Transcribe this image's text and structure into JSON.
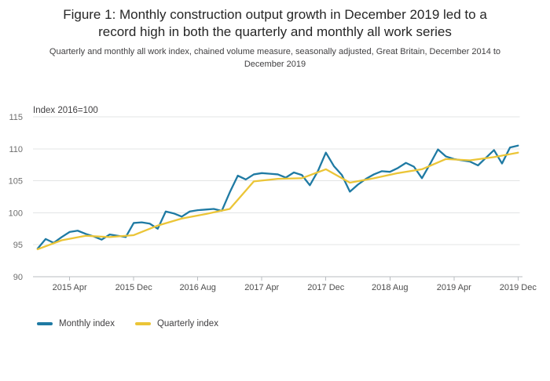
{
  "chart_data": {
    "type": "line",
    "title": "Figure 1: Monthly construction output growth in December 2019 led to a record high in both the quarterly and monthly all work series",
    "subtitle": "Quarterly and monthly all work index, chained volume measure, seasonally adjusted, Great Britain, December 2014 to December 2019",
    "unit_label": "Index 2016=100",
    "grid": "horizontal",
    "legend_position": "bottom-left",
    "colors": {
      "monthly_line": "#1f7aa3",
      "quarterly_line": "#ebc537",
      "gridline": "#e3e4e5",
      "axis": "#b9bdc1",
      "text": "#414042"
    },
    "y_axis": {
      "ticks": [
        90,
        95,
        100,
        105,
        110,
        115
      ],
      "range": [
        90,
        115
      ]
    },
    "x_axis": {
      "start": "2014 Dec",
      "end": "2019 Dec",
      "months_span": 60,
      "tick_months": [
        4,
        12,
        20,
        28,
        36,
        44,
        52,
        60
      ],
      "tick_labels": [
        "2015 Apr",
        "2015 Dec",
        "2016 Aug",
        "2017 Apr",
        "2017 Dec",
        "2018 Aug",
        "2019 Apr",
        "2019 Dec"
      ]
    },
    "series": [
      {
        "name": "Monthly index",
        "frequency": "monthly",
        "month_step": 1,
        "color": "#1f7aa3",
        "values": [
          94.4,
          95.9,
          95.3,
          96.2,
          97.0,
          97.2,
          96.7,
          96.3,
          95.8,
          96.6,
          96.4,
          96.2,
          98.4,
          98.5,
          98.3,
          97.5,
          100.2,
          99.9,
          99.4,
          100.2,
          100.4,
          100.5,
          100.6,
          100.3,
          103.2,
          105.8,
          105.2,
          106.0,
          106.2,
          106.1,
          106.0,
          105.5,
          106.3,
          105.9,
          104.3,
          106.5,
          109.4,
          107.3,
          105.9,
          103.3,
          104.4,
          105.3,
          106.0,
          106.5,
          106.4,
          107.0,
          107.8,
          107.2,
          105.4,
          107.6,
          109.9,
          108.8,
          108.4,
          108.2,
          108.0,
          107.4,
          108.6,
          109.8,
          107.7,
          110.2,
          110.5
        ]
      },
      {
        "name": "Quarterly index",
        "frequency": "quarterly",
        "month_step": 3,
        "color": "#ebc537",
        "values": [
          94.3,
          95.7,
          96.4,
          96.2,
          96.5,
          98.0,
          99.1,
          99.8,
          100.6,
          104.9,
          105.3,
          105.4,
          106.8,
          104.7,
          105.4,
          106.2,
          106.8,
          108.4,
          108.2,
          108.7,
          109.4
        ]
      }
    ]
  }
}
